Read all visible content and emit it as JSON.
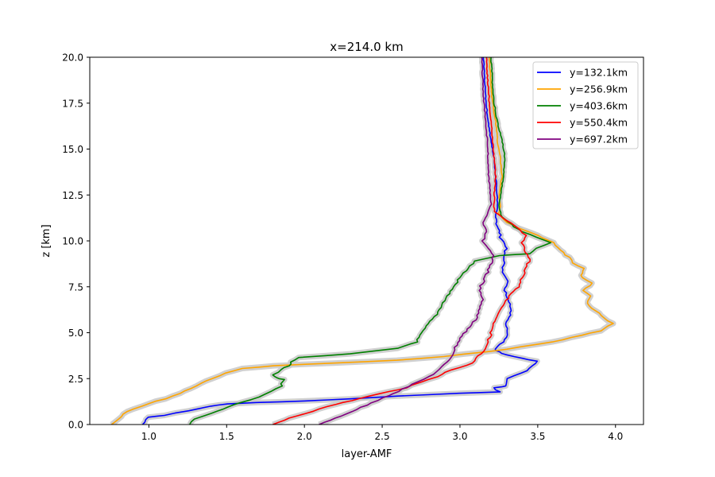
{
  "chart_data": {
    "type": "line",
    "title": "x=214.0 km",
    "xlabel": "layer-AMF",
    "ylabel": "z [km]",
    "xlim": [
      0.62,
      4.18
    ],
    "ylim": [
      0,
      20
    ],
    "xticks": [
      "1.0",
      "1.5",
      "2.0",
      "2.5",
      "3.0",
      "3.5",
      "4.0"
    ],
    "yticks": [
      "0.0",
      "2.5",
      "5.0",
      "7.5",
      "10.0",
      "12.5",
      "15.0",
      "17.5",
      "20.0"
    ],
    "grid": false,
    "legend_position": "top-right",
    "series": [
      {
        "name": "y=132.1km",
        "color": "#0000ff",
        "points": [
          [
            0.96,
            0.0
          ],
          [
            1.0,
            0.4
          ],
          [
            1.1,
            0.5
          ],
          [
            1.25,
            0.75
          ],
          [
            1.4,
            1.0
          ],
          [
            1.5,
            1.12
          ],
          [
            1.7,
            1.2
          ],
          [
            2.0,
            1.28
          ],
          [
            2.3,
            1.4
          ],
          [
            2.6,
            1.55
          ],
          [
            3.0,
            1.7
          ],
          [
            3.25,
            1.78
          ],
          [
            3.22,
            2.0
          ],
          [
            3.3,
            2.1
          ],
          [
            3.3,
            2.5
          ],
          [
            3.4,
            2.8
          ],
          [
            3.47,
            3.2
          ],
          [
            3.5,
            3.45
          ],
          [
            3.4,
            3.6
          ],
          [
            3.3,
            3.8
          ],
          [
            3.25,
            3.95
          ],
          [
            3.22,
            4.1
          ],
          [
            3.28,
            4.5
          ],
          [
            3.31,
            5.0
          ],
          [
            3.3,
            5.6
          ],
          [
            3.33,
            6.2
          ],
          [
            3.31,
            6.8
          ],
          [
            3.29,
            7.3
          ],
          [
            3.3,
            7.8
          ],
          [
            3.27,
            8.3
          ],
          [
            3.29,
            8.8
          ],
          [
            3.28,
            9.2
          ],
          [
            3.3,
            9.7
          ],
          [
            3.26,
            10.2
          ],
          [
            3.24,
            10.8
          ],
          [
            3.23,
            11.3
          ],
          [
            3.24,
            11.8
          ],
          [
            3.24,
            12.5
          ],
          [
            3.23,
            13.5
          ],
          [
            3.22,
            14.5
          ],
          [
            3.2,
            15.5
          ],
          [
            3.18,
            16.5
          ],
          [
            3.17,
            17.5
          ],
          [
            3.16,
            18.5
          ],
          [
            3.15,
            20.0
          ]
        ]
      },
      {
        "name": "y=256.9km",
        "color": "#ffa500",
        "points": [
          [
            0.76,
            0.0
          ],
          [
            0.8,
            0.3
          ],
          [
            0.85,
            0.7
          ],
          [
            0.95,
            1.0
          ],
          [
            1.1,
            1.4
          ],
          [
            1.2,
            1.7
          ],
          [
            1.3,
            2.1
          ],
          [
            1.4,
            2.5
          ],
          [
            1.5,
            2.8
          ],
          [
            1.6,
            3.05
          ],
          [
            1.8,
            3.2
          ],
          [
            2.2,
            3.35
          ],
          [
            2.6,
            3.5
          ],
          [
            2.9,
            3.7
          ],
          [
            3.3,
            4.1
          ],
          [
            3.6,
            4.5
          ],
          [
            3.9,
            5.1
          ],
          [
            3.98,
            5.5
          ],
          [
            3.93,
            5.8
          ],
          [
            3.87,
            6.2
          ],
          [
            3.82,
            6.6
          ],
          [
            3.84,
            7.0
          ],
          [
            3.8,
            7.3
          ],
          [
            3.85,
            7.7
          ],
          [
            3.78,
            8.0
          ],
          [
            3.8,
            8.5
          ],
          [
            3.73,
            8.8
          ],
          [
            3.7,
            9.1
          ],
          [
            3.65,
            9.5
          ],
          [
            3.6,
            9.9
          ],
          [
            3.5,
            10.3
          ],
          [
            3.4,
            10.6
          ],
          [
            3.3,
            11.0
          ],
          [
            3.25,
            11.5
          ],
          [
            3.26,
            12.0
          ],
          [
            3.25,
            12.5
          ],
          [
            3.27,
            13.5
          ],
          [
            3.26,
            14.5
          ],
          [
            3.24,
            15.5
          ],
          [
            3.23,
            16.5
          ],
          [
            3.21,
            17.5
          ],
          [
            3.2,
            18.5
          ],
          [
            3.19,
            20.0
          ]
        ]
      },
      {
        "name": "y=403.6km",
        "color": "#008000",
        "points": [
          [
            1.26,
            0.0
          ],
          [
            1.3,
            0.3
          ],
          [
            1.4,
            0.6
          ],
          [
            1.5,
            0.95
          ],
          [
            1.6,
            1.2
          ],
          [
            1.7,
            1.5
          ],
          [
            1.78,
            1.8
          ],
          [
            1.85,
            2.1
          ],
          [
            1.87,
            2.45
          ],
          [
            1.82,
            2.55
          ],
          [
            1.8,
            2.7
          ],
          [
            1.85,
            3.0
          ],
          [
            1.9,
            3.2
          ],
          [
            1.92,
            3.4
          ],
          [
            1.97,
            3.65
          ],
          [
            2.3,
            3.85
          ],
          [
            2.6,
            4.15
          ],
          [
            2.72,
            4.5
          ],
          [
            2.76,
            5.0
          ],
          [
            2.8,
            5.5
          ],
          [
            2.85,
            6.0
          ],
          [
            2.88,
            6.5
          ],
          [
            2.92,
            7.0
          ],
          [
            2.96,
            7.5
          ],
          [
            3.0,
            8.0
          ],
          [
            3.05,
            8.5
          ],
          [
            3.1,
            8.9
          ],
          [
            3.25,
            9.2
          ],
          [
            3.45,
            9.3
          ],
          [
            3.5,
            9.6
          ],
          [
            3.58,
            9.9
          ],
          [
            3.5,
            10.2
          ],
          [
            3.4,
            10.5
          ],
          [
            3.33,
            10.9
          ],
          [
            3.27,
            11.3
          ],
          [
            3.25,
            11.8
          ],
          [
            3.26,
            12.5
          ],
          [
            3.28,
            13.5
          ],
          [
            3.29,
            14.5
          ],
          [
            3.27,
            15.5
          ],
          [
            3.24,
            16.5
          ],
          [
            3.22,
            17.5
          ],
          [
            3.21,
            18.5
          ],
          [
            3.2,
            20.0
          ]
        ]
      },
      {
        "name": "y=550.4km",
        "color": "#ff0000",
        "points": [
          [
            1.8,
            0.0
          ],
          [
            1.9,
            0.35
          ],
          [
            2.0,
            0.6
          ],
          [
            2.1,
            0.85
          ],
          [
            2.2,
            1.1
          ],
          [
            2.3,
            1.3
          ],
          [
            2.42,
            1.55
          ],
          [
            2.55,
            1.8
          ],
          [
            2.65,
            2.0
          ],
          [
            2.75,
            2.3
          ],
          [
            2.85,
            2.6
          ],
          [
            2.9,
            2.85
          ],
          [
            3.0,
            3.1
          ],
          [
            3.08,
            3.35
          ],
          [
            3.1,
            3.6
          ],
          [
            3.15,
            4.0
          ],
          [
            3.18,
            4.5
          ],
          [
            3.2,
            5.0
          ],
          [
            3.22,
            5.5
          ],
          [
            3.25,
            6.0
          ],
          [
            3.28,
            6.5
          ],
          [
            3.32,
            7.0
          ],
          [
            3.38,
            7.5
          ],
          [
            3.4,
            8.0
          ],
          [
            3.42,
            8.5
          ],
          [
            3.45,
            9.0
          ],
          [
            3.42,
            9.5
          ],
          [
            3.4,
            9.9
          ],
          [
            3.42,
            10.3
          ],
          [
            3.37,
            10.7
          ],
          [
            3.3,
            11.1
          ],
          [
            3.22,
            11.6
          ],
          [
            3.22,
            12.5
          ],
          [
            3.23,
            13.5
          ],
          [
            3.22,
            14.5
          ],
          [
            3.21,
            15.5
          ],
          [
            3.2,
            16.5
          ],
          [
            3.19,
            17.5
          ],
          [
            3.18,
            18.5
          ],
          [
            3.17,
            20.0
          ]
        ]
      },
      {
        "name": "y=697.2km",
        "color": "#800080",
        "points": [
          [
            2.1,
            0.0
          ],
          [
            2.2,
            0.35
          ],
          [
            2.3,
            0.7
          ],
          [
            2.4,
            1.05
          ],
          [
            2.5,
            1.45
          ],
          [
            2.6,
            1.8
          ],
          [
            2.7,
            2.2
          ],
          [
            2.8,
            2.6
          ],
          [
            2.87,
            3.0
          ],
          [
            2.92,
            3.4
          ],
          [
            2.95,
            3.8
          ],
          [
            2.97,
            4.2
          ],
          [
            3.0,
            4.7
          ],
          [
            3.05,
            5.2
          ],
          [
            3.1,
            5.7
          ],
          [
            3.12,
            6.2
          ],
          [
            3.15,
            6.8
          ],
          [
            3.12,
            7.3
          ],
          [
            3.15,
            7.8
          ],
          [
            3.18,
            8.3
          ],
          [
            3.2,
            8.8
          ],
          [
            3.22,
            9.2
          ],
          [
            3.18,
            9.6
          ],
          [
            3.15,
            10.0
          ],
          [
            3.17,
            10.5
          ],
          [
            3.15,
            11.0
          ],
          [
            3.18,
            11.5
          ],
          [
            3.2,
            12.0
          ],
          [
            3.19,
            13.0
          ],
          [
            3.18,
            14.0
          ],
          [
            3.18,
            15.0
          ],
          [
            3.17,
            16.0
          ],
          [
            3.16,
            17.0
          ],
          [
            3.15,
            18.0
          ],
          [
            3.14,
            20.0
          ]
        ]
      }
    ]
  }
}
